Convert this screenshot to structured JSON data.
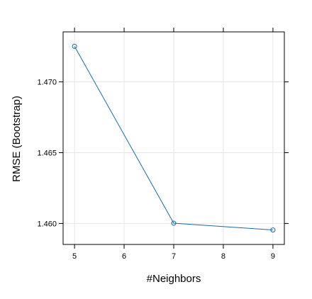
{
  "chart_data": {
    "type": "line",
    "title": "",
    "xlabel": "#Neighbors",
    "ylabel": "RMSE (Bootstrap)",
    "x": [
      5,
      7,
      9
    ],
    "series": [
      {
        "values": [
          1.47251,
          1.46002,
          1.45954
        ]
      }
    ],
    "xlim": [
      4.77,
      9.23
    ],
    "ylim": [
      1.45852,
      1.47353
    ],
    "x_ticks": [
      5,
      6,
      7,
      8,
      9
    ],
    "x_tick_labels": [
      "5",
      "6",
      "7",
      "8",
      "9"
    ],
    "y_ticks": [
      1.46,
      1.465,
      1.47
    ],
    "y_tick_labels": [
      "1.460",
      "1.465",
      "1.470"
    ],
    "grid": true,
    "legend": "none",
    "markers": "open-circle",
    "colors": {
      "line": "#1a6ba3",
      "grid": "#e6e6e6",
      "frame": "#000000"
    }
  }
}
